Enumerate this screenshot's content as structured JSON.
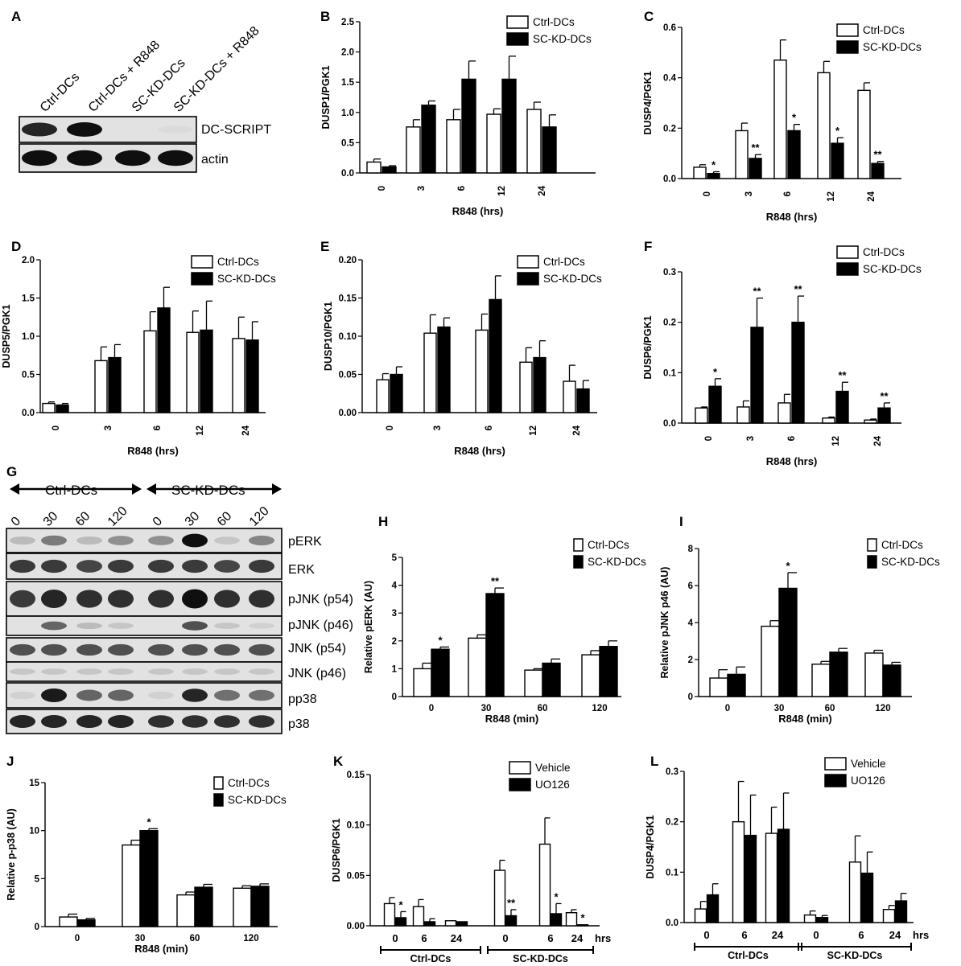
{
  "panels": [
    "A",
    "B",
    "C",
    "D",
    "E",
    "F",
    "G",
    "H",
    "I",
    "J",
    "K",
    "L"
  ],
  "blot_A": {
    "lanes": [
      "Ctrl-DCs",
      "Ctrl-DCs + R848",
      "SC-KD-DCs",
      "SC-KD-DCs + R848"
    ],
    "rows": [
      {
        "label": "DC-SCRIPT",
        "intensity": [
          0.9,
          1.0,
          0.0,
          0.05
        ]
      },
      {
        "label": "actin",
        "intensity": [
          1.0,
          1.0,
          1.0,
          1.0
        ]
      }
    ]
  },
  "blot_G": {
    "groups": [
      "Ctrl-DCs",
      "SC-KD-DCs"
    ],
    "lanes": [
      "0",
      "30",
      "60",
      "120",
      "0",
      "30",
      "60",
      "120"
    ],
    "rows": [
      {
        "label": "pERK",
        "intensity": [
          0.2,
          0.5,
          0.2,
          0.4,
          0.4,
          1.0,
          0.15,
          0.45
        ]
      },
      {
        "label": "ERK",
        "intensity": [
          0.8,
          0.8,
          0.75,
          0.8,
          0.8,
          0.8,
          0.75,
          0.8
        ]
      },
      {
        "label": "pJNK (p54)",
        "intensity": [
          0.8,
          0.9,
          0.85,
          0.85,
          0.85,
          1.0,
          0.85,
          0.85
        ]
      },
      {
        "label": "pJNK (p46)",
        "intensity": [
          0.0,
          0.6,
          0.2,
          0.15,
          0.0,
          0.7,
          0.15,
          0.1
        ]
      },
      {
        "label": "JNK (p54)",
        "intensity": [
          0.7,
          0.7,
          0.7,
          0.7,
          0.7,
          0.7,
          0.7,
          0.7
        ]
      },
      {
        "label": "JNK (p46)",
        "intensity": [
          0.15,
          0.15,
          0.15,
          0.15,
          0.15,
          0.15,
          0.15,
          0.15
        ]
      },
      {
        "label": "pp38",
        "intensity": [
          0.1,
          0.95,
          0.6,
          0.6,
          0.1,
          0.9,
          0.55,
          0.55
        ]
      },
      {
        "label": "p38",
        "intensity": [
          0.9,
          0.9,
          0.9,
          0.9,
          0.85,
          0.85,
          0.85,
          0.85
        ]
      }
    ]
  },
  "chart_data": [
    {
      "panel": "B",
      "type": "bar",
      "ylabel": "DUSP1/PGK1",
      "xlabel": "R848 (hrs)",
      "categories": [
        "0",
        "3",
        "6",
        "12",
        "24"
      ],
      "ylim": [
        0,
        2.5
      ],
      "yticks": [
        "0.0",
        "0.5",
        "1.0",
        "1.5",
        "2.0",
        "2.5"
      ],
      "series": [
        {
          "name": "Ctrl-DCs",
          "values": [
            0.18,
            0.76,
            0.88,
            0.97,
            1.05
          ],
          "errors": [
            0.05,
            0.12,
            0.17,
            0.09,
            0.12
          ]
        },
        {
          "name": "SC-KD-DCs",
          "values": [
            0.1,
            1.12,
            1.55,
            1.55,
            0.76
          ],
          "errors": [
            0.02,
            0.07,
            0.3,
            0.38,
            0.2
          ]
        }
      ],
      "significance": []
    },
    {
      "panel": "C",
      "type": "bar",
      "ylabel": "DUSP4/PGK1",
      "xlabel": "R848 (hrs)",
      "categories": [
        "0",
        "3",
        "6",
        "12",
        "24"
      ],
      "ylim": [
        0,
        0.6
      ],
      "yticks": [
        "0.0",
        "0.2",
        "0.4",
        "0.6"
      ],
      "series": [
        {
          "name": "Ctrl-DCs",
          "values": [
            0.045,
            0.19,
            0.47,
            0.42,
            0.35
          ],
          "errors": [
            0.01,
            0.03,
            0.08,
            0.045,
            0.03
          ]
        },
        {
          "name": "SC-KD-DCs",
          "values": [
            0.02,
            0.08,
            0.19,
            0.14,
            0.06
          ],
          "errors": [
            0.007,
            0.015,
            0.025,
            0.022,
            0.008
          ]
        }
      ],
      "significance": [
        {
          "index": 0,
          "text": "*"
        },
        {
          "index": 1,
          "text": "**"
        },
        {
          "index": 2,
          "text": "*"
        },
        {
          "index": 3,
          "text": "*"
        },
        {
          "index": 4,
          "text": "**"
        }
      ]
    },
    {
      "panel": "D",
      "type": "bar",
      "ylabel": "DUSP5/PGK1",
      "xlabel": "R848 (hrs)",
      "categories": [
        "0",
        "3",
        "6",
        "12",
        "24"
      ],
      "ylim": [
        0,
        2.0
      ],
      "yticks": [
        "0.0",
        "0.5",
        "1.0",
        "1.5",
        "2.0"
      ],
      "series": [
        {
          "name": "Ctrl-DCs",
          "values": [
            0.12,
            0.68,
            1.07,
            1.05,
            0.97
          ],
          "errors": [
            0.02,
            0.18,
            0.25,
            0.28,
            0.28
          ]
        },
        {
          "name": "SC-KD-DCs",
          "values": [
            0.1,
            0.72,
            1.37,
            1.08,
            0.95
          ],
          "errors": [
            0.02,
            0.17,
            0.27,
            0.38,
            0.24
          ]
        }
      ],
      "significance": []
    },
    {
      "panel": "E",
      "type": "bar",
      "ylabel": "DUSP10/PGK1",
      "xlabel": "R848 (hrs)",
      "categories": [
        "0",
        "3",
        "6",
        "12",
        "24"
      ],
      "ylim": [
        0,
        0.2
      ],
      "yticks": [
        "0.00",
        "0.05",
        "0.10",
        "0.15",
        "0.20"
      ],
      "series": [
        {
          "name": "Ctrl-DCs",
          "values": [
            0.043,
            0.104,
            0.108,
            0.066,
            0.041
          ],
          "errors": [
            0.008,
            0.024,
            0.021,
            0.019,
            0.021
          ]
        },
        {
          "name": "SC-KD-DCs",
          "values": [
            0.05,
            0.112,
            0.148,
            0.072,
            0.031
          ],
          "errors": [
            0.01,
            0.012,
            0.031,
            0.022,
            0.011
          ]
        }
      ],
      "significance": []
    },
    {
      "panel": "F",
      "type": "bar",
      "ylabel": "DUSP6/PGK1",
      "xlabel": "R848 (hrs)",
      "categories": [
        "0",
        "3",
        "6",
        "12",
        "24"
      ],
      "ylim": [
        0,
        0.3
      ],
      "yticks": [
        "0.0",
        "0.1",
        "0.2",
        "0.3"
      ],
      "series": [
        {
          "name": "Ctrl-DCs",
          "values": [
            0.03,
            0.032,
            0.04,
            0.01,
            0.006
          ],
          "errors": [
            0.002,
            0.012,
            0.017,
            0.002,
            0.002
          ]
        },
        {
          "name": "SC-KD-DCs",
          "values": [
            0.073,
            0.19,
            0.2,
            0.063,
            0.03
          ],
          "errors": [
            0.015,
            0.058,
            0.052,
            0.018,
            0.01
          ]
        }
      ],
      "significance": [
        {
          "index": 0,
          "text": "*"
        },
        {
          "index": 1,
          "text": "**"
        },
        {
          "index": 2,
          "text": "**"
        },
        {
          "index": 3,
          "text": "**"
        },
        {
          "index": 4,
          "text": "**"
        }
      ]
    },
    {
      "panel": "H",
      "type": "bar",
      "ylabel": "Relative pERK (AU)",
      "xlabel": "R848 (min)",
      "categories": [
        "0",
        "30",
        "60",
        "120"
      ],
      "ylim": [
        0,
        5
      ],
      "yticks": [
        "0",
        "1",
        "2",
        "3",
        "4",
        "5"
      ],
      "series": [
        {
          "name": "Ctrl-DCs",
          "values": [
            1.0,
            2.1,
            0.95,
            1.5
          ],
          "errors": [
            0.2,
            0.12,
            0.05,
            0.15
          ]
        },
        {
          "name": "SC-KD-DCs",
          "values": [
            1.7,
            3.7,
            1.2,
            1.8
          ],
          "errors": [
            0.08,
            0.2,
            0.15,
            0.2
          ]
        }
      ],
      "significance": [
        {
          "index": 0,
          "text": "*"
        },
        {
          "index": 1,
          "text": "**"
        }
      ]
    },
    {
      "panel": "I",
      "type": "bar",
      "ylabel": "Relative pJNK p46 (AU)",
      "xlabel": "R848 (min)",
      "categories": [
        "0",
        "30",
        "60",
        "120"
      ],
      "ylim": [
        0,
        8
      ],
      "yticks": [
        "0",
        "2",
        "4",
        "6",
        "8"
      ],
      "series": [
        {
          "name": "Ctrl-DCs",
          "values": [
            1.0,
            3.8,
            1.75,
            2.35
          ],
          "errors": [
            0.45,
            0.3,
            0.15,
            0.15
          ]
        },
        {
          "name": "SC-KD-DCs",
          "values": [
            1.2,
            5.85,
            2.4,
            1.7
          ],
          "errors": [
            0.4,
            0.85,
            0.2,
            0.15
          ]
        }
      ],
      "significance": [
        {
          "index": 1,
          "text": "*"
        }
      ]
    },
    {
      "panel": "J",
      "type": "bar",
      "ylabel": "Relative p-p38 (AU)",
      "xlabel": "R848 (min)",
      "categories": [
        "0",
        "30",
        "60",
        "120"
      ],
      "ylim": [
        0,
        15
      ],
      "yticks": [
        "0",
        "5",
        "10",
        "15"
      ],
      "series": [
        {
          "name": "Ctrl-DCs",
          "values": [
            1.0,
            8.5,
            3.3,
            4.0
          ],
          "errors": [
            0.3,
            0.5,
            0.3,
            0.25
          ]
        },
        {
          "name": "SC-KD-DCs",
          "values": [
            0.7,
            10.0,
            4.1,
            4.2
          ],
          "errors": [
            0.15,
            0.2,
            0.3,
            0.25
          ]
        }
      ],
      "significance": [
        {
          "index": 1,
          "text": "*"
        }
      ]
    },
    {
      "panel": "K",
      "type": "bar",
      "ylabel": "DUSP6/PGK1",
      "xlabel": "",
      "categories": [
        "0",
        "6",
        "24",
        "0",
        "6",
        "24"
      ],
      "suffix": "hrs",
      "groups": [
        "Ctrl-DCs",
        "SC-KD-DCs"
      ],
      "ylim": [
        0,
        0.15
      ],
      "yticks": [
        "0.00",
        "0.05",
        "0.10",
        "0.15"
      ],
      "series": [
        {
          "name": "Vehicle",
          "values": [
            0.022,
            0.019,
            0.005,
            0.055,
            0.081,
            0.013
          ],
          "errors": [
            0.006,
            0.007,
            0.0,
            0.01,
            0.026,
            0.003
          ]
        },
        {
          "name": "UO126",
          "values": [
            0.008,
            0.004,
            0.004,
            0.01,
            0.012,
            0.001
          ],
          "errors": [
            0.006,
            0.003,
            0.0,
            0.006,
            0.01,
            0.0
          ]
        }
      ],
      "significance": [
        {
          "index": 0,
          "text": "*"
        },
        {
          "index": 3,
          "text": "**"
        },
        {
          "index": 4,
          "text": "*"
        },
        {
          "index": 5,
          "text": "*"
        }
      ]
    },
    {
      "panel": "L",
      "type": "bar",
      "ylabel": "DUSP4/PGK1",
      "xlabel": "",
      "categories": [
        "0",
        "6",
        "24",
        "0",
        "6",
        "24"
      ],
      "suffix": "hrs",
      "groups": [
        "Ctrl-DCs",
        "SC-KD-DCs"
      ],
      "ylim": [
        0,
        0.3
      ],
      "yticks": [
        "0.0",
        "0.1",
        "0.2",
        "0.3"
      ],
      "series": [
        {
          "name": "Vehicle",
          "values": [
            0.027,
            0.2,
            0.177,
            0.015,
            0.12,
            0.026
          ],
          "errors": [
            0.015,
            0.08,
            0.052,
            0.008,
            0.052,
            0.008
          ]
        },
        {
          "name": "UO126",
          "values": [
            0.055,
            0.173,
            0.185,
            0.01,
            0.098,
            0.043
          ],
          "errors": [
            0.022,
            0.08,
            0.072,
            0.004,
            0.042,
            0.015
          ]
        }
      ],
      "significance": []
    }
  ]
}
